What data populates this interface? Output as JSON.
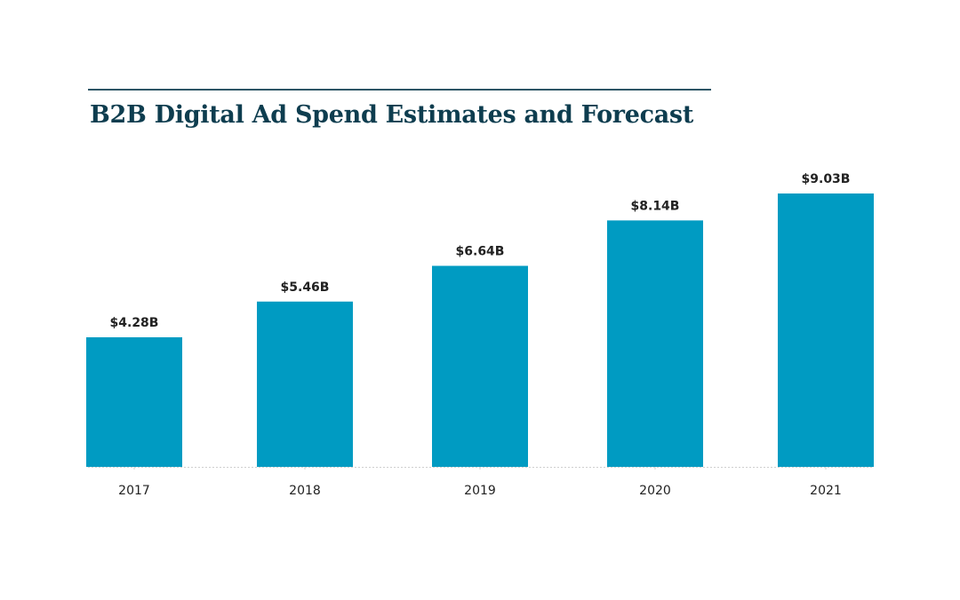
{
  "chart_data": {
    "type": "bar",
    "title": "B2B Digital Ad Spend Estimates and Forecast",
    "categories": [
      "2017",
      "2018",
      "2019",
      "2020",
      "2021"
    ],
    "values": [
      4.28,
      5.46,
      6.64,
      8.14,
      9.03
    ],
    "data_labels": [
      "$4.28B",
      "$5.46B",
      "$6.64B",
      "$8.14B",
      "$9.03B"
    ],
    "unit": "billion USD",
    "xlabel": "",
    "ylabel": "",
    "ylim": [
      0,
      9.03
    ],
    "grid": false,
    "legend": "none",
    "colors": {
      "bar": "#009bc2",
      "title": "#0e3d4f"
    }
  }
}
